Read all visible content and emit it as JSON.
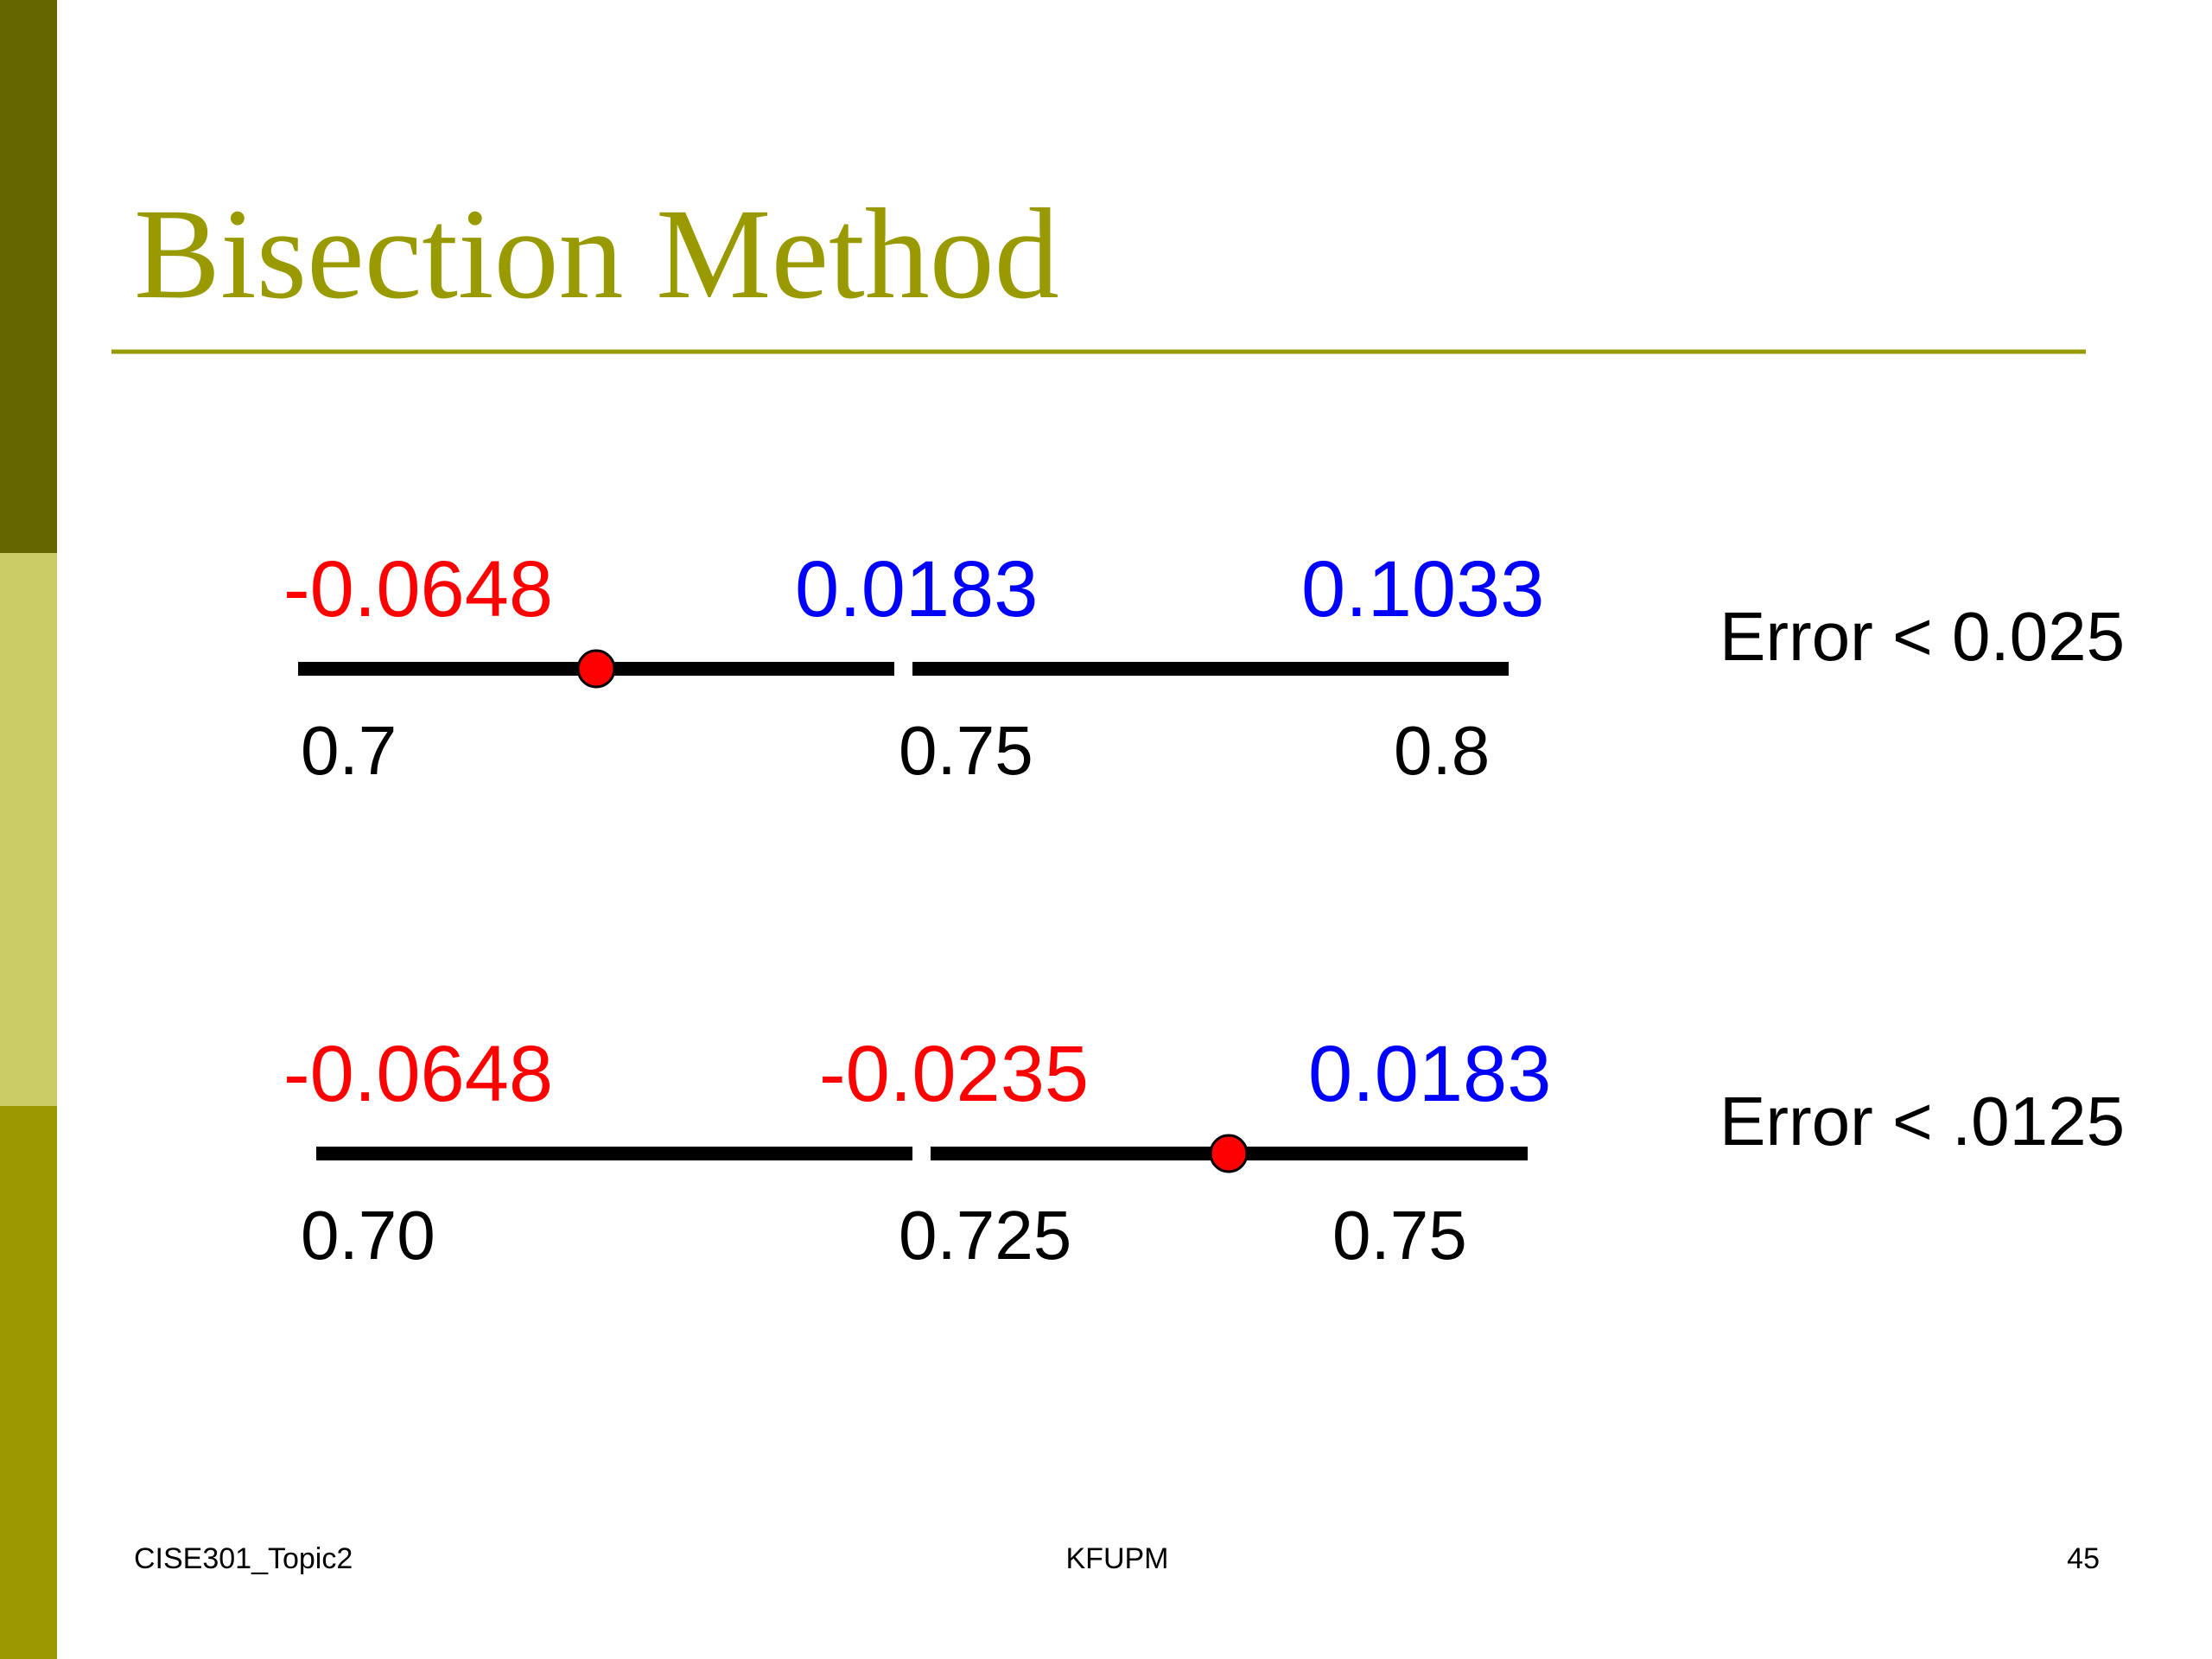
{
  "header": {
    "title": "Bisection Method"
  },
  "steps": [
    {
      "values": [
        "-0.0648",
        "0.0183",
        "0.1033"
      ],
      "points": [
        "0.7",
        "0.75",
        "0.8"
      ],
      "error": "Error < 0.025"
    },
    {
      "values": [
        "-0.0648",
        "-0.0235",
        "0.0183"
      ],
      "points": [
        "0.70",
        "0.725",
        "0.75"
      ],
      "error": "Error < .0125"
    }
  ],
  "footer": {
    "left": "CISE301_Topic2",
    "center": "KFUPM",
    "page": "45"
  }
}
